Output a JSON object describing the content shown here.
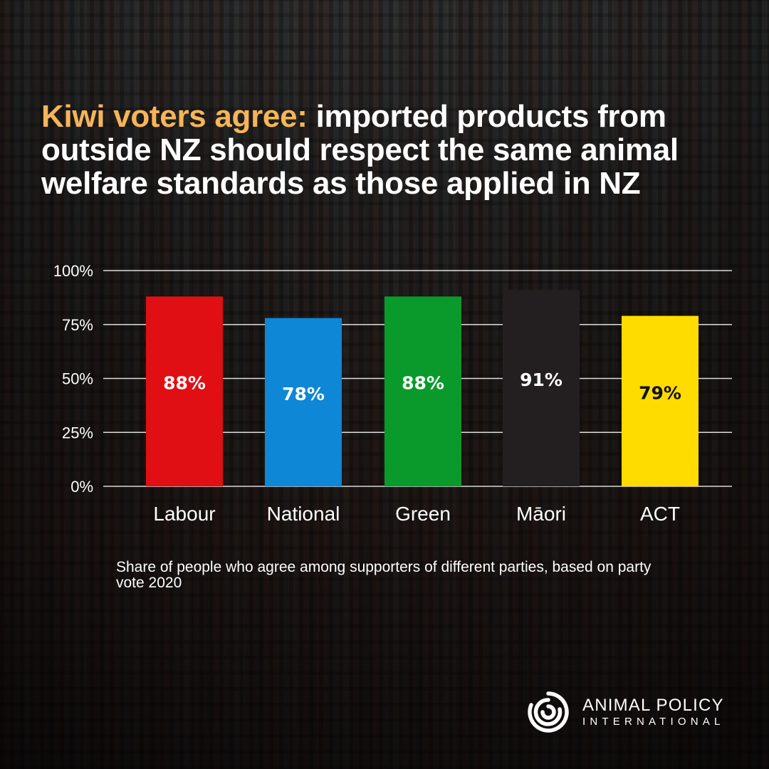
{
  "title": {
    "highlight": "Kiwi voters agree:",
    "rest": "imported products from outside NZ should respect the same animal welfare standards as those applied in NZ",
    "highlight_color": "#f5b558"
  },
  "caption": "Share of people who agree among supporters of different parties, based on party vote 2020",
  "brand": {
    "name": "ANIMAL POLICY",
    "sub": "INTERNATIONAL",
    "icon": "spiral-logo-icon"
  },
  "chart_data": {
    "type": "bar",
    "categories": [
      "Labour",
      "National",
      "Green",
      "Māori",
      "ACT"
    ],
    "values": [
      88,
      78,
      88,
      91,
      79
    ],
    "value_labels": [
      "88%",
      "78%",
      "88%",
      "91%",
      "79%"
    ],
    "colors": [
      "#e00f14",
      "#0d87d6",
      "#0a9a2c",
      "#231f20",
      "#ffdc00"
    ],
    "label_colors": [
      "#ffffff",
      "#ffffff",
      "#ffffff",
      "#ffffff",
      "#111111"
    ],
    "yticks": [
      0,
      25,
      50,
      75,
      100
    ],
    "ytick_labels": [
      "0%",
      "25%",
      "50%",
      "75%",
      "100%"
    ],
    "ylim": [
      0,
      100
    ],
    "grid": true,
    "title": "",
    "xlabel": "",
    "ylabel": ""
  }
}
